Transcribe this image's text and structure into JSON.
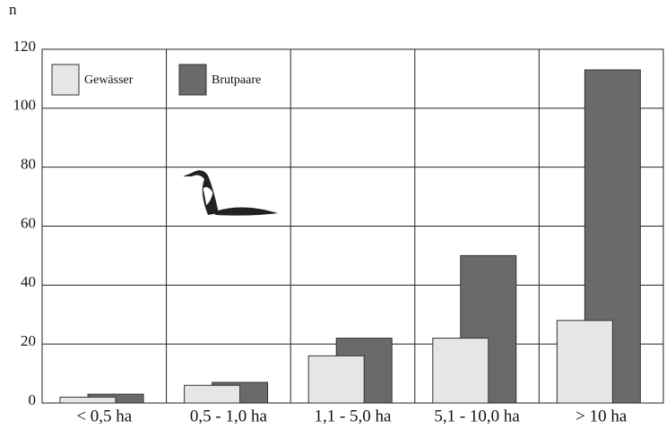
{
  "chart_data": {
    "type": "bar",
    "y_axis_label": "n",
    "categories": [
      "< 0,5 ha",
      "0,5 - 1,0 ha",
      "1,1 - 5,0 ha",
      "5,1 - 10,0 ha",
      "> 10 ha"
    ],
    "series": [
      {
        "name": "Gewässer",
        "color": "#e6e6e6",
        "values": [
          2,
          6,
          16,
          22,
          28
        ]
      },
      {
        "name": "Brutpaare",
        "color": "#6a6a6a",
        "values": [
          3,
          7,
          22,
          50,
          113
        ]
      }
    ],
    "ylim": [
      0,
      120
    ],
    "yticks": [
      0,
      20,
      40,
      60,
      80,
      100,
      120
    ],
    "grid": true
  }
}
